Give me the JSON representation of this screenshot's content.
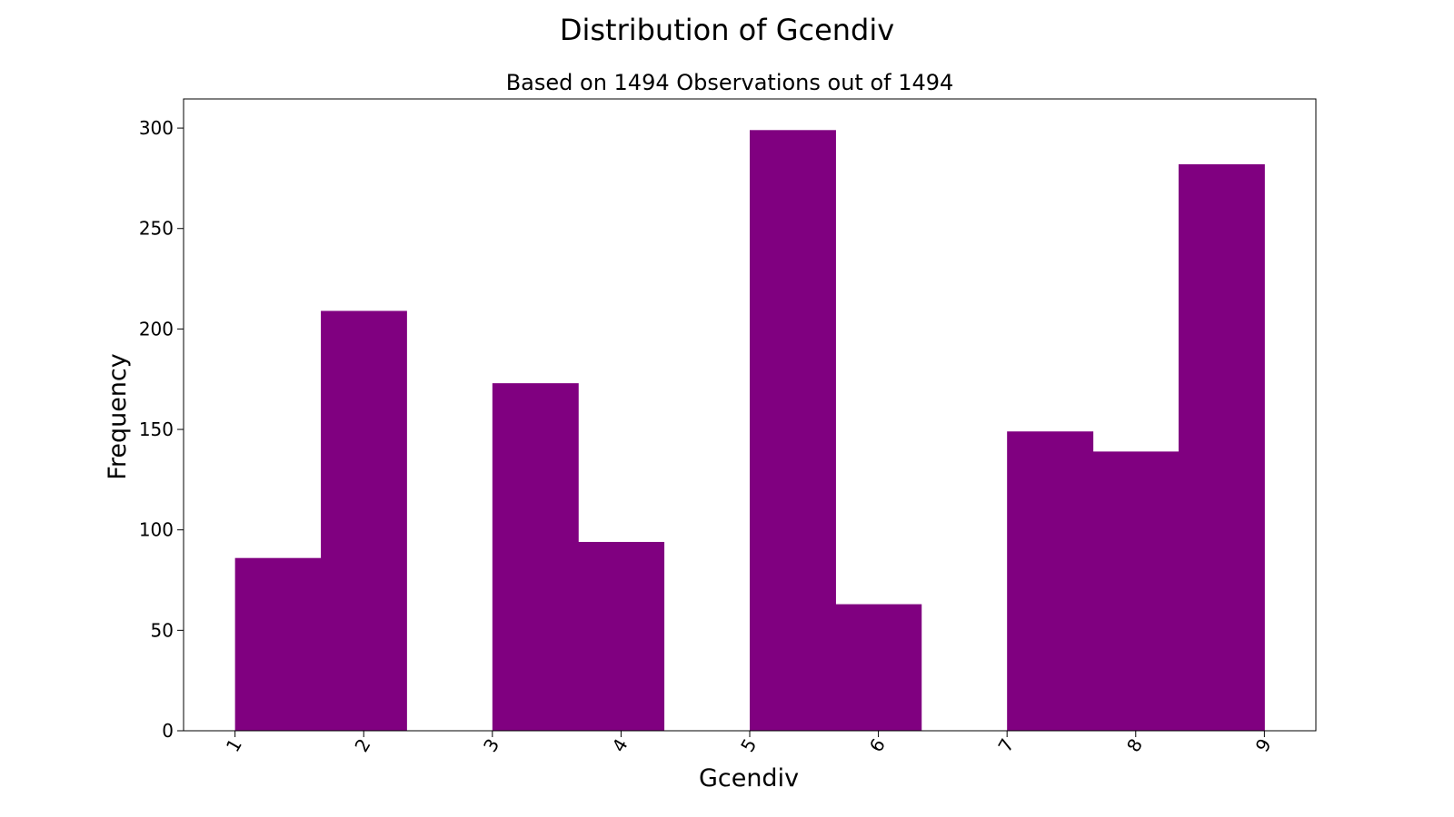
{
  "chart_data": {
    "type": "bar",
    "title": "Distribution of Gcendiv",
    "subtitle": "Based on 1494 Observations out of 1494",
    "xlabel": "Gcendiv",
    "ylabel": "Frequency",
    "xlim": [
      0.6,
      9.4
    ],
    "ylim": [
      0,
      314.5
    ],
    "grid": false,
    "bar_color": "#800080",
    "xticks": [
      1,
      2,
      3,
      4,
      5,
      6,
      7,
      8,
      9
    ],
    "xtick_labels": [
      "1",
      "2",
      "3",
      "4",
      "5",
      "6",
      "7",
      "8",
      "9"
    ],
    "yticks": [
      0,
      50,
      100,
      150,
      200,
      250,
      300
    ],
    "ytick_labels": [
      "0",
      "50",
      "100",
      "150",
      "200",
      "250",
      "300"
    ],
    "bins": [
      {
        "x0": 1.0,
        "x1": 1.667,
        "value": 86
      },
      {
        "x0": 1.667,
        "x1": 2.333,
        "value": 209
      },
      {
        "x0": 2.333,
        "x1": 3.0,
        "value": 0
      },
      {
        "x0": 3.0,
        "x1": 3.667,
        "value": 173
      },
      {
        "x0": 3.667,
        "x1": 4.333,
        "value": 94
      },
      {
        "x0": 4.333,
        "x1": 5.0,
        "value": 0
      },
      {
        "x0": 5.0,
        "x1": 5.667,
        "value": 299
      },
      {
        "x0": 5.667,
        "x1": 6.333,
        "value": 63
      },
      {
        "x0": 6.333,
        "x1": 7.0,
        "value": 0
      },
      {
        "x0": 7.0,
        "x1": 7.667,
        "value": 149
      },
      {
        "x0": 7.667,
        "x1": 8.333,
        "value": 139
      },
      {
        "x0": 8.333,
        "x1": 9.0,
        "value": 282
      }
    ]
  }
}
